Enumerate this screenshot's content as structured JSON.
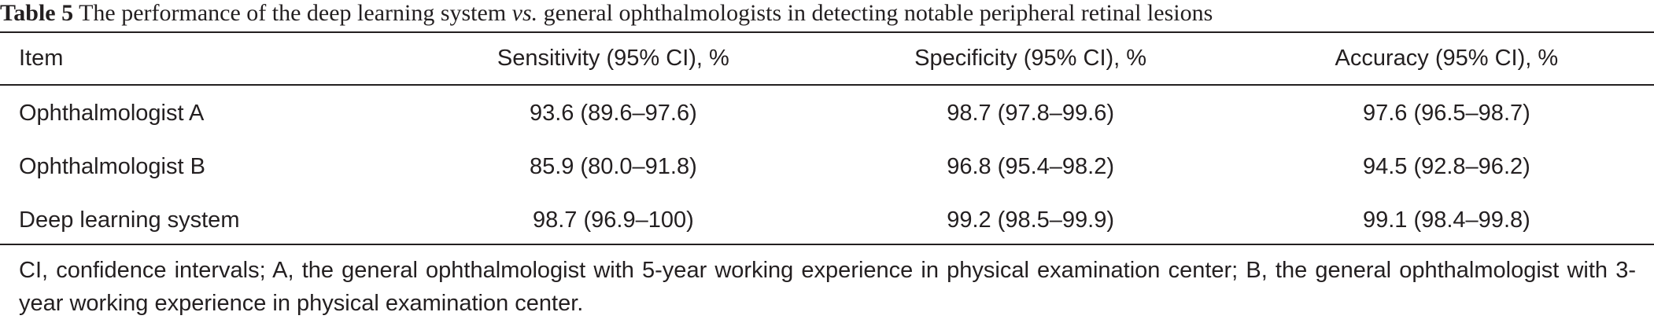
{
  "caption": {
    "label": "Table 5",
    "text_before": "The performance of the deep learning system",
    "vs": "vs.",
    "text_after": "general ophthalmologists in detecting notable peripheral retinal lesions"
  },
  "table": {
    "headers": {
      "item": "Item",
      "sensitivity": "Sensitivity (95% CI), %",
      "specificity": "Specificity (95% CI), %",
      "accuracy": "Accuracy (95% CI), %"
    },
    "rows": [
      {
        "item": "Ophthalmologist A",
        "sensitivity": "93.6 (89.6–97.6)",
        "specificity": "98.7 (97.8–99.6)",
        "accuracy": "97.6 (96.5–98.7)"
      },
      {
        "item": "Ophthalmologist B",
        "sensitivity": "85.9 (80.0–91.8)",
        "specificity": "96.8 (95.4–98.2)",
        "accuracy": "94.5 (92.8–96.2)"
      },
      {
        "item": "Deep learning system",
        "sensitivity": "98.7 (96.9–100)",
        "specificity": "99.2 (98.5–99.9)",
        "accuracy": "99.1 (98.4–99.8)"
      }
    ]
  },
  "footnote": "CI, confidence intervals; A, the general ophthalmologist with 5-year working experience in physical examination center; B, the general ophthalmologist with 3-year working experience in physical examination center."
}
